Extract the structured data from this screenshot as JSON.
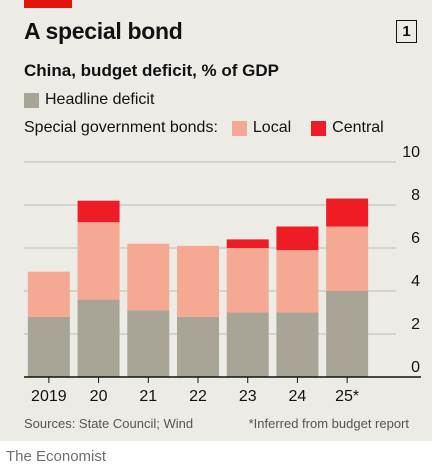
{
  "header": {
    "title": "A special bond",
    "chart_number": "1",
    "subtitle": "China, budget deficit, % of GDP"
  },
  "legend": {
    "headline": "Headline deficit",
    "special_title": "Special government bonds:",
    "local": "Local",
    "central": "Central"
  },
  "footer": {
    "sources": "Sources: State Council; Wind",
    "note": "*Inferred from budget report",
    "credit": "The Economist"
  },
  "colors": {
    "accent": "#e3120b",
    "headline": "#a8a596",
    "local": "#f6a992",
    "central": "#ee1c24",
    "background": "#ecebe6",
    "grid": "#bdbcb6"
  },
  "chart_data": {
    "type": "bar",
    "stacked": true,
    "categories": [
      "2019",
      "20",
      "21",
      "22",
      "23",
      "24",
      "25*"
    ],
    "series": [
      {
        "name": "Headline deficit",
        "values": [
          2.8,
          3.6,
          3.1,
          2.8,
          3.0,
          3.0,
          4.0
        ]
      },
      {
        "name": "Local",
        "values": [
          2.1,
          3.6,
          3.1,
          3.3,
          3.0,
          2.9,
          3.0
        ]
      },
      {
        "name": "Central",
        "values": [
          0,
          1.0,
          0,
          0,
          0.4,
          1.1,
          1.3
        ]
      }
    ],
    "ylim": [
      0,
      10
    ],
    "yticks": [
      "0",
      "2",
      "4",
      "6",
      "8",
      "10"
    ],
    "y_axis_side": "right",
    "grid": true
  }
}
